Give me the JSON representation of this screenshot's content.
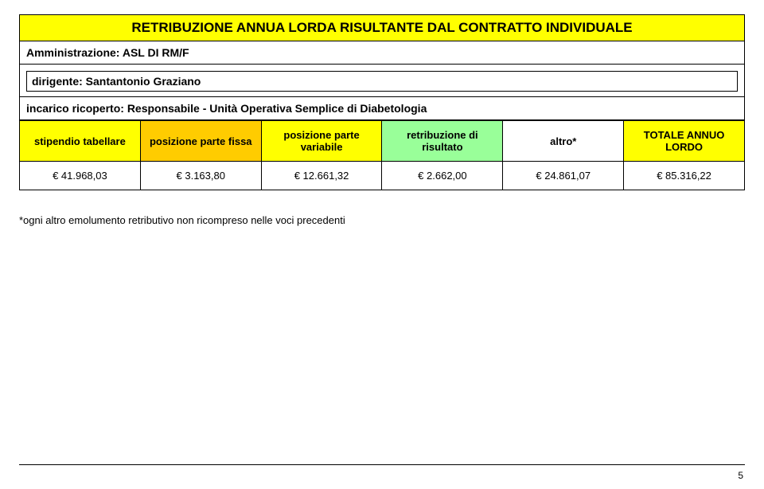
{
  "title": "RETRIBUZIONE ANNUA LORDA RISULTANTE DAL CONTRATTO INDIVIDUALE",
  "administration_label": "Amministrazione:",
  "administration_value": "ASL DI RM/F",
  "dirigente_label": "dirigente:",
  "dirigente_value": "Santantonio Graziano",
  "incarico_label": "incarico ricoperto:",
  "incarico_value": "Responsabile - Unità Operativa Semplice di Diabetologia",
  "headers": {
    "stipendio": "stipendio tabellare",
    "fissa": "posizione parte fissa",
    "variabile": "posizione parte variabile",
    "risultato": "retribuzione di risultato",
    "altro": "altro*",
    "totale": "TOTALE ANNUO LORDO"
  },
  "values": {
    "stipendio": "€ 41.968,03",
    "fissa": "€ 3.163,80",
    "variabile": "€ 12.661,32",
    "risultato": "€ 2.662,00",
    "altro": "€ 24.861,07",
    "totale": "€ 85.316,22"
  },
  "footnote": "*ogni altro emolumento retributivo non ricompreso nelle voci precedenti",
  "page_number": "5",
  "colors": {
    "yellow": "#ffff00",
    "orange": "#ffcc00",
    "green": "#99ff99",
    "border": "#000000",
    "background": "#ffffff"
  }
}
